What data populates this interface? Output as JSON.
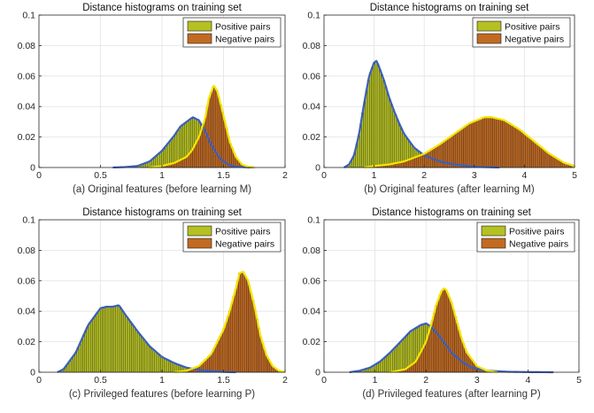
{
  "colors": {
    "positive_fill": "#b5c022",
    "negative_fill": "#c26a22",
    "bar_edge": "#1a1a1a",
    "positive_curve": "#3a5fbd",
    "negative_curve": "#f2e600"
  },
  "chart_data": [
    {
      "type": "bar",
      "title": "Distance histograms on training set",
      "caption": "(a) Original features (before learning M)",
      "legend": {
        "position": "top-right",
        "entries": [
          "Positive pairs",
          "Negative pairs"
        ]
      },
      "xlim": [
        0,
        2
      ],
      "ylim": [
        0,
        0.1
      ],
      "xticks": [
        0,
        0.5,
        1,
        1.5,
        2
      ],
      "xtick_labels": [
        "0",
        "0.5",
        "1",
        "1.5",
        "2"
      ],
      "yticks": [
        0,
        0.02,
        0.04,
        0.06,
        0.08,
        0.1
      ],
      "ytick_labels": [
        "0",
        "0.02",
        "0.04",
        "0.06",
        "0.08",
        "0.1"
      ],
      "series": [
        {
          "name": "Positive pairs",
          "x": [
            0.6,
            0.7,
            0.8,
            0.9,
            1.0,
            1.05,
            1.1,
            1.15,
            1.2,
            1.25,
            1.3,
            1.35,
            1.4,
            1.45,
            1.5,
            1.55,
            1.6,
            1.7,
            1.75
          ],
          "y": [
            0,
            0.0003,
            0.001,
            0.004,
            0.011,
            0.016,
            0.021,
            0.027,
            0.03,
            0.033,
            0.031,
            0.024,
            0.015,
            0.008,
            0.004,
            0.0015,
            0.0005,
            0.0001,
            0
          ]
        },
        {
          "name": "Negative pairs",
          "x": [
            0.9,
            1.0,
            1.1,
            1.2,
            1.25,
            1.3,
            1.35,
            1.38,
            1.42,
            1.45,
            1.5,
            1.55,
            1.6,
            1.65,
            1.7,
            1.75
          ],
          "y": [
            0,
            0.001,
            0.003,
            0.007,
            0.012,
            0.02,
            0.032,
            0.045,
            0.054,
            0.05,
            0.034,
            0.017,
            0.007,
            0.002,
            0.0005,
            0
          ]
        }
      ]
    },
    {
      "type": "bar",
      "title": "Distance histograms on training set",
      "caption": "(b) Original features (after learning M)",
      "legend": {
        "position": "top-right",
        "entries": [
          "Positive pairs",
          "Negative pairs"
        ]
      },
      "xlim": [
        0,
        5
      ],
      "ylim": [
        0,
        0.1
      ],
      "xticks": [
        0,
        1,
        2,
        3,
        4,
        5
      ],
      "xtick_labels": [
        "0",
        "1",
        "2",
        "3",
        "4",
        "5"
      ],
      "yticks": [
        0,
        0.02,
        0.04,
        0.06,
        0.08,
        0.1
      ],
      "ytick_labels": [
        "0",
        "0.02",
        "0.04",
        "0.06",
        "0.08",
        "0.1"
      ],
      "series": [
        {
          "name": "Positive pairs",
          "x": [
            0.4,
            0.5,
            0.6,
            0.7,
            0.8,
            0.9,
            1.0,
            1.05,
            1.1,
            1.2,
            1.3,
            1.4,
            1.5,
            1.6,
            1.8,
            2.0,
            2.3,
            2.6,
            3.0,
            3.5
          ],
          "y": [
            0,
            0.002,
            0.008,
            0.022,
            0.042,
            0.06,
            0.069,
            0.07,
            0.066,
            0.057,
            0.046,
            0.037,
            0.029,
            0.022,
            0.013,
            0.008,
            0.004,
            0.002,
            0.0005,
            0
          ]
        },
        {
          "name": "Negative pairs",
          "x": [
            0.8,
            1.0,
            1.3,
            1.6,
            2.0,
            2.3,
            2.6,
            2.9,
            3.2,
            3.35,
            3.6,
            3.9,
            4.2,
            4.5,
            4.8,
            5.0
          ],
          "y": [
            0,
            0.001,
            0.002,
            0.004,
            0.009,
            0.015,
            0.022,
            0.029,
            0.033,
            0.033,
            0.031,
            0.025,
            0.017,
            0.009,
            0.003,
            0.001
          ]
        }
      ]
    },
    {
      "type": "bar",
      "title": "Distance histograms on training set",
      "caption": "(c) Privileged features (before learning P)",
      "legend": {
        "position": "top-right",
        "entries": [
          "Positive pairs",
          "Negative pairs"
        ]
      },
      "xlim": [
        0,
        2
      ],
      "ylim": [
        0,
        0.1
      ],
      "xticks": [
        0,
        0.5,
        1,
        1.5,
        2
      ],
      "xtick_labels": [
        "0",
        "0.5",
        "1",
        "1.5",
        "2"
      ],
      "yticks": [
        0,
        0.02,
        0.04,
        0.06,
        0.08,
        0.1
      ],
      "ytick_labels": [
        "0",
        "0.02",
        "0.04",
        "0.06",
        "0.08",
        "0.1"
      ],
      "series": [
        {
          "name": "Positive pairs",
          "x": [
            0.15,
            0.2,
            0.3,
            0.4,
            0.5,
            0.55,
            0.6,
            0.65,
            0.7,
            0.8,
            0.9,
            1.0,
            1.1,
            1.2,
            1.3,
            1.4,
            1.5,
            1.6
          ],
          "y": [
            0,
            0.002,
            0.013,
            0.031,
            0.042,
            0.043,
            0.043,
            0.044,
            0.038,
            0.027,
            0.017,
            0.01,
            0.006,
            0.003,
            0.0015,
            0.0007,
            0.0002,
            0
          ]
        },
        {
          "name": "Negative pairs",
          "x": [
            1.1,
            1.2,
            1.3,
            1.4,
            1.5,
            1.55,
            1.6,
            1.63,
            1.66,
            1.7,
            1.75,
            1.8,
            1.85,
            1.9,
            1.95,
            2.0
          ],
          "y": [
            0,
            0.001,
            0.004,
            0.012,
            0.028,
            0.04,
            0.055,
            0.065,
            0.066,
            0.06,
            0.044,
            0.024,
            0.011,
            0.004,
            0.001,
            0
          ]
        }
      ]
    },
    {
      "type": "bar",
      "title": "Distance histograms on training set",
      "caption": "(d) Privileged features (after learning P)",
      "legend": {
        "position": "top-right",
        "entries": [
          "Positive pairs",
          "Negative pairs"
        ]
      },
      "xlim": [
        0,
        5
      ],
      "ylim": [
        0,
        0.1
      ],
      "xticks": [
        0,
        1,
        2,
        3,
        4,
        5
      ],
      "xtick_labels": [
        "0",
        "1",
        "2",
        "3",
        "4",
        "5"
      ],
      "yticks": [
        0,
        0.02,
        0.04,
        0.06,
        0.08,
        0.1
      ],
      "ytick_labels": [
        "0",
        "0.02",
        "0.04",
        "0.06",
        "0.08",
        "0.1"
      ],
      "series": [
        {
          "name": "Positive pairs",
          "x": [
            0.5,
            0.7,
            0.9,
            1.1,
            1.3,
            1.5,
            1.7,
            1.9,
            2.0,
            2.1,
            2.3,
            2.5,
            2.7,
            2.9,
            3.2,
            3.6,
            4.0,
            4.5
          ],
          "y": [
            0,
            0.001,
            0.003,
            0.007,
            0.013,
            0.02,
            0.027,
            0.031,
            0.032,
            0.03,
            0.022,
            0.013,
            0.007,
            0.003,
            0.001,
            0.0003,
            0.0001,
            0
          ]
        },
        {
          "name": "Negative pairs",
          "x": [
            1.3,
            1.6,
            1.8,
            2.0,
            2.1,
            2.2,
            2.3,
            2.35,
            2.4,
            2.5,
            2.6,
            2.7,
            2.8,
            3.0,
            3.2,
            3.4
          ],
          "y": [
            0,
            0.002,
            0.007,
            0.02,
            0.031,
            0.044,
            0.053,
            0.055,
            0.054,
            0.046,
            0.034,
            0.022,
            0.013,
            0.004,
            0.001,
            0
          ]
        }
      ]
    }
  ]
}
